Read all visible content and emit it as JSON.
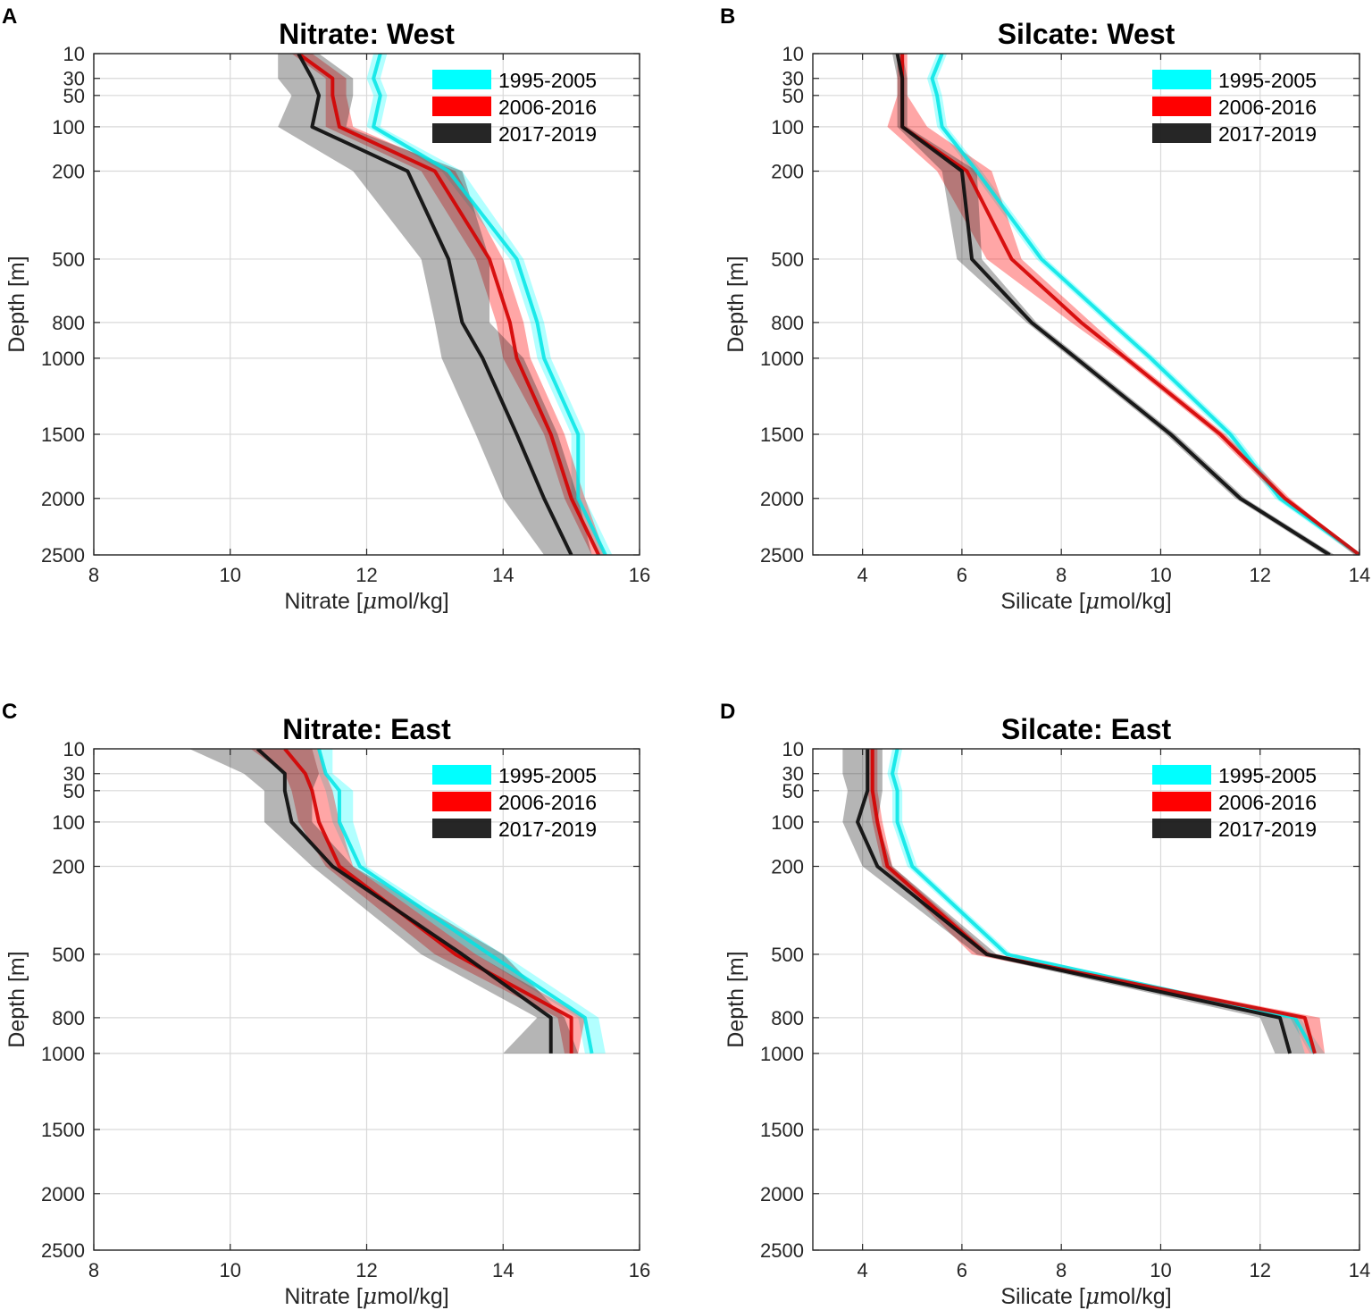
{
  "legend": [
    "1995-2005",
    "2006-2016",
    "2017-2019"
  ],
  "colors": {
    "s1995": "#00ffff",
    "s2006": "#ff0000",
    "s2017": "#1a1a1a",
    "line1995": "#00e5e5",
    "line2006": "#d40000",
    "line2017": "#111111"
  },
  "y_ticks": [
    10,
    30,
    50,
    100,
    200,
    500,
    800,
    1000,
    1500,
    2000,
    2500
  ],
  "chart_data": [
    {
      "letter": "A",
      "type": "line",
      "title": "Nitrate: West",
      "xlabel": "Nitrate [",
      "xunit": "mol/kg]",
      "ylabel": "Depth [m]",
      "xlim": [
        8,
        16
      ],
      "xticks": [
        8,
        10,
        12,
        14,
        16
      ],
      "ylim": [
        10,
        2500
      ],
      "yscale": "sqrt",
      "grid": true,
      "legend_loc": "top-right",
      "depth": [
        10,
        30,
        50,
        100,
        200,
        500,
        800,
        1000,
        1500,
        2000,
        2500
      ],
      "series": [
        {
          "name": "1995-2005",
          "mean": [
            12.2,
            12.1,
            12.2,
            12.1,
            13.2,
            14.2,
            14.5,
            14.6,
            15.1,
            15.1,
            15.5
          ],
          "lo": [
            12.1,
            12.0,
            12.1,
            12.0,
            13.1,
            14.1,
            14.4,
            14.5,
            15.0,
            15.0,
            15.4
          ],
          "hi": [
            12.3,
            12.2,
            12.3,
            12.2,
            13.4,
            14.3,
            14.6,
            14.7,
            15.2,
            15.2,
            15.6
          ]
        },
        {
          "name": "2006-2016",
          "mean": [
            11.0,
            11.5,
            11.5,
            11.6,
            13.0,
            13.8,
            14.1,
            14.2,
            14.7,
            15.0,
            15.4
          ],
          "lo": [
            10.9,
            11.4,
            11.4,
            11.4,
            12.8,
            13.6,
            13.9,
            14.0,
            14.6,
            14.9,
            15.3
          ],
          "hi": [
            11.2,
            11.7,
            11.7,
            11.8,
            13.3,
            14.0,
            14.3,
            14.4,
            14.9,
            15.2,
            15.5
          ]
        },
        {
          "name": "2017-2019",
          "mean": [
            11.0,
            11.2,
            11.3,
            11.2,
            12.6,
            13.2,
            13.4,
            13.7,
            14.2,
            14.6,
            15.0
          ],
          "lo": [
            10.7,
            10.7,
            10.9,
            10.7,
            11.8,
            12.8,
            13.0,
            13.1,
            13.6,
            14.0,
            14.6
          ],
          "hi": [
            11.3,
            11.8,
            11.8,
            11.7,
            13.4,
            13.8,
            13.8,
            14.3,
            14.8,
            15.1,
            15.3
          ]
        }
      ]
    },
    {
      "letter": "B",
      "type": "line",
      "title": "Silcate: West",
      "xlabel": "Silicate [",
      "xunit": "mol/kg]",
      "ylabel": "Depth [m]",
      "xlim": [
        3,
        14
      ],
      "xticks": [
        4,
        6,
        8,
        10,
        12,
        14
      ],
      "ylim": [
        10,
        2500
      ],
      "yscale": "sqrt",
      "grid": true,
      "legend_loc": "top-right",
      "depth": [
        10,
        30,
        50,
        100,
        200,
        500,
        800,
        1000,
        1500,
        2000,
        2500
      ],
      "series": [
        {
          "name": "1995-2005",
          "mean": [
            5.6,
            5.4,
            5.5,
            5.6,
            6.3,
            7.6,
            9.0,
            9.8,
            11.4,
            12.4,
            14.0
          ],
          "lo": [
            5.5,
            5.3,
            5.4,
            5.5,
            6.2,
            7.5,
            8.9,
            9.7,
            11.3,
            12.3,
            13.9
          ],
          "hi": [
            5.7,
            5.5,
            5.6,
            5.7,
            6.4,
            7.7,
            9.1,
            9.9,
            11.5,
            12.5,
            14.0
          ]
        },
        {
          "name": "2006-2016",
          "mean": [
            4.8,
            4.8,
            4.8,
            4.8,
            6.1,
            7.0,
            8.4,
            9.3,
            11.2,
            12.5,
            14.0
          ],
          "lo": [
            4.7,
            4.7,
            4.7,
            4.5,
            5.5,
            6.5,
            8.2,
            9.2,
            11.1,
            12.4,
            13.9
          ],
          "hi": [
            4.9,
            4.9,
            4.9,
            5.3,
            6.6,
            7.2,
            8.6,
            9.4,
            11.3,
            12.6,
            14.0
          ]
        },
        {
          "name": "2017-2019",
          "mean": [
            4.7,
            4.8,
            4.8,
            4.8,
            6.0,
            6.2,
            7.4,
            8.3,
            10.2,
            11.6,
            13.4
          ],
          "lo": [
            4.6,
            4.7,
            4.7,
            4.7,
            5.6,
            5.9,
            7.3,
            8.2,
            10.1,
            11.5,
            13.3
          ],
          "hi": [
            4.8,
            4.9,
            4.9,
            4.9,
            6.3,
            6.4,
            7.5,
            8.4,
            10.3,
            11.7,
            13.5
          ]
        }
      ]
    },
    {
      "letter": "C",
      "type": "line",
      "title": "Nitrate: East",
      "xlabel": "Nitrate [",
      "xunit": "mol/kg]",
      "ylabel": "Depth [m]",
      "xlim": [
        8,
        16
      ],
      "xticks": [
        8,
        10,
        12,
        14,
        16
      ],
      "ylim": [
        10,
        2500
      ],
      "yscale": "sqrt",
      "grid": true,
      "legend_loc": "top-right",
      "depth": [
        10,
        30,
        50,
        100,
        200,
        500,
        800,
        1000
      ],
      "series": [
        {
          "name": "1995-2005",
          "mean": [
            11.3,
            11.4,
            11.6,
            11.6,
            11.9,
            13.8,
            15.2,
            15.3
          ],
          "lo": [
            11.2,
            11.3,
            11.4,
            11.5,
            11.8,
            13.6,
            15.1,
            15.2
          ],
          "hi": [
            11.5,
            11.5,
            11.8,
            11.8,
            12.0,
            14.0,
            15.4,
            15.5
          ]
        },
        {
          "name": "2006-2016",
          "mean": [
            10.8,
            11.1,
            11.2,
            11.3,
            11.6,
            13.3,
            15.0,
            15.0
          ],
          "lo": [
            10.3,
            10.8,
            10.9,
            11.0,
            11.4,
            13.0,
            14.8,
            14.9
          ],
          "hi": [
            11.3,
            11.4,
            11.5,
            11.6,
            11.8,
            13.6,
            15.2,
            15.1
          ]
        },
        {
          "name": "2017-2019",
          "mean": [
            10.4,
            10.8,
            10.8,
            10.9,
            11.5,
            13.4,
            14.7,
            14.7
          ],
          "lo": [
            9.4,
            10.2,
            10.5,
            10.5,
            11.2,
            12.8,
            14.5,
            14.0
          ],
          "hi": [
            11.2,
            11.3,
            11.2,
            11.2,
            11.8,
            14.0,
            14.9,
            15.1
          ]
        }
      ]
    },
    {
      "letter": "D",
      "type": "line",
      "title": "Silcate: East",
      "xlabel": "Silicate [",
      "xunit": "mol/kg]",
      "ylabel": "Depth [m]",
      "xlim": [
        3,
        14
      ],
      "xticks": [
        4,
        6,
        8,
        10,
        12,
        14
      ],
      "ylim": [
        10,
        2500
      ],
      "yscale": "sqrt",
      "grid": true,
      "legend_loc": "top-right",
      "depth": [
        10,
        30,
        50,
        100,
        200,
        500,
        800,
        1000
      ],
      "series": [
        {
          "name": "1995-2005",
          "mean": [
            4.7,
            4.6,
            4.7,
            4.7,
            5.0,
            6.9,
            12.7,
            13.1
          ],
          "lo": [
            4.6,
            4.5,
            4.6,
            4.6,
            4.9,
            6.8,
            12.6,
            13.0
          ],
          "hi": [
            4.8,
            4.7,
            4.8,
            4.8,
            5.1,
            7.0,
            12.8,
            13.3
          ]
        },
        {
          "name": "2006-2016",
          "mean": [
            4.2,
            4.2,
            4.2,
            4.3,
            4.5,
            6.5,
            12.9,
            13.1
          ],
          "lo": [
            4.1,
            4.1,
            4.1,
            4.2,
            4.4,
            6.2,
            12.7,
            12.9
          ],
          "hi": [
            4.3,
            4.3,
            4.3,
            4.4,
            4.6,
            6.6,
            13.2,
            13.3
          ]
        },
        {
          "name": "2017-2019",
          "mean": [
            4.1,
            4.1,
            4.1,
            3.9,
            4.3,
            6.5,
            12.4,
            12.6
          ],
          "lo": [
            3.6,
            3.6,
            3.7,
            3.6,
            4.0,
            6.3,
            12.0,
            12.3
          ],
          "hi": [
            4.4,
            4.4,
            4.4,
            4.3,
            4.6,
            6.7,
            12.7,
            12.9
          ]
        }
      ]
    }
  ]
}
